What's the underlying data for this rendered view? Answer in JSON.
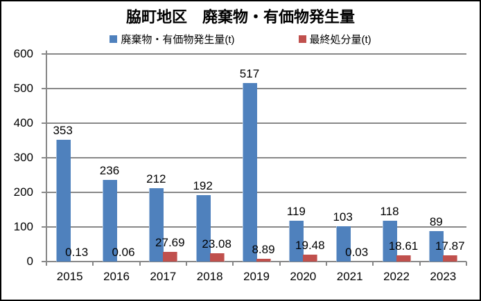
{
  "chart_data": {
    "type": "bar",
    "title": "脇町地区　廃棄物・有価物発生量",
    "categories": [
      "2015",
      "2016",
      "2017",
      "2018",
      "2019",
      "2020",
      "2021",
      "2022",
      "2023"
    ],
    "series": [
      {
        "name": "廃棄物・有価物発生量(t)",
        "color": "#4F81BD",
        "values": [
          353,
          236,
          212,
          192,
          517,
          119,
          103,
          118,
          89
        ],
        "labels": [
          "353",
          "236",
          "212",
          "192",
          "517",
          "119",
          "103",
          "118",
          "89"
        ]
      },
      {
        "name": "最終処分量(t)",
        "color": "#C0504D",
        "values": [
          0.13,
          0.06,
          27.69,
          23.08,
          8.89,
          19.48,
          0.03,
          18.61,
          17.87
        ],
        "labels": [
          "0.13",
          "0.06",
          "27.69",
          "23.08",
          "8.89",
          "19.48",
          "0.03",
          "18.61",
          "17.87"
        ]
      }
    ],
    "xlabel": "",
    "ylabel": "",
    "ylim": [
      0,
      600
    ],
    "yticks": [
      600,
      500,
      400,
      300,
      200,
      100,
      0
    ],
    "grid": true,
    "legend_position": "top",
    "gridline_color": "#878787",
    "text_color": "#000000"
  }
}
